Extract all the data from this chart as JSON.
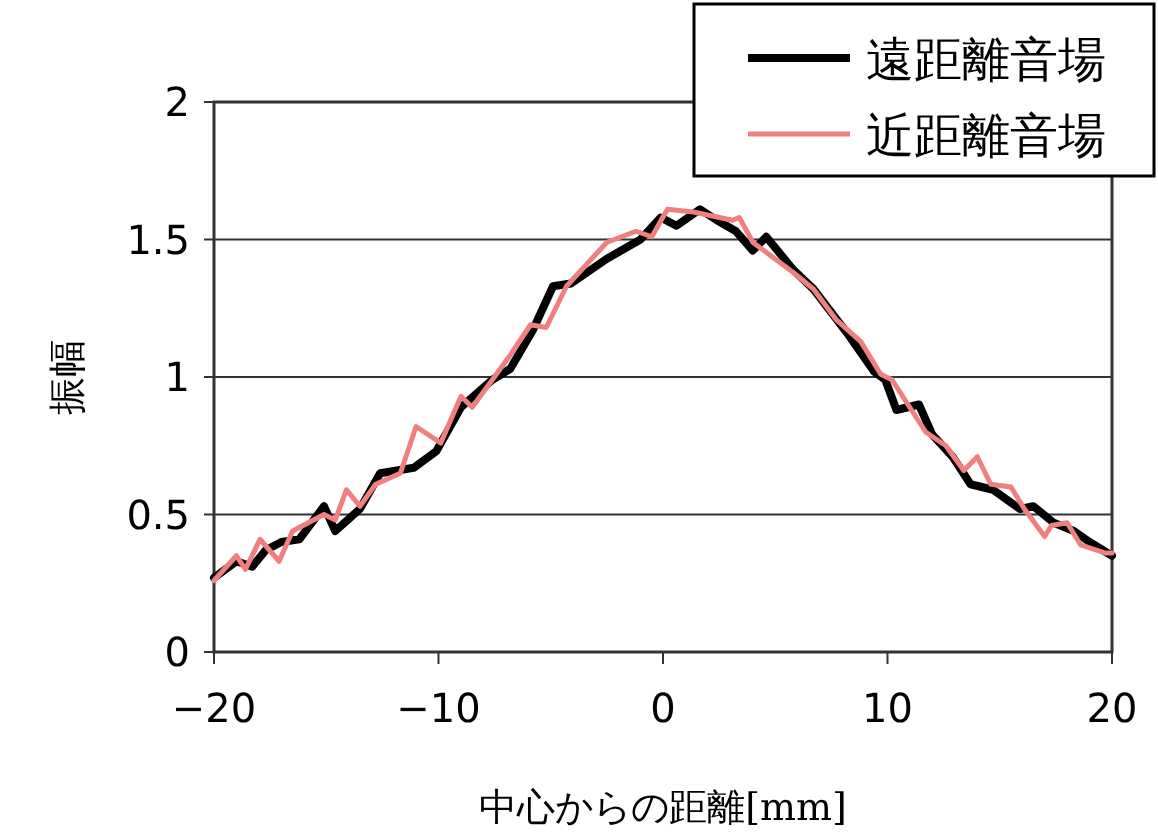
{
  "chart_data": {
    "type": "line",
    "xlabel": "中心からの距離[mm]",
    "ylabel": "振幅",
    "xlim": [
      -20,
      20
    ],
    "xticks": [
      {
        "value": -20,
        "label": "−20"
      },
      {
        "value": -10,
        "label": "−10"
      },
      0,
      10,
      20
    ],
    "ylim": [
      0,
      2
    ],
    "yticks": [
      0,
      0.5,
      1,
      1.5,
      2
    ],
    "grid": "y",
    "legend": "top right",
    "line_style": "solid",
    "marker": "none",
    "series": [
      {
        "name": "遠距離音場",
        "color": "#000000",
        "x": [
          -20,
          -19,
          -18.3,
          -17.7,
          -17,
          -16.2,
          -15.1,
          -14.6,
          -13.5,
          -12.6,
          -11.1,
          -10.1,
          -9,
          -7.6,
          -6.8,
          -5.8,
          -4.9,
          -4.1,
          -2.5,
          -1,
          -0.1,
          0.6,
          1.65,
          2.4,
          3.25,
          4,
          4.6,
          5.8,
          6.7,
          8.2,
          9.4,
          9.9,
          10.4,
          11.4,
          12,
          12.9,
          13.7,
          14.7,
          15.9,
          16.5,
          17.4,
          18.3,
          19,
          20
        ],
        "values": [
          0.27,
          0.33,
          0.31,
          0.37,
          0.4,
          0.41,
          0.53,
          0.44,
          0.52,
          0.65,
          0.67,
          0.73,
          0.89,
          0.99,
          1.03,
          1.17,
          1.33,
          1.34,
          1.43,
          1.5,
          1.58,
          1.55,
          1.61,
          1.57,
          1.53,
          1.46,
          1.51,
          1.39,
          1.32,
          1.16,
          1.02,
          0.99,
          0.88,
          0.9,
          0.79,
          0.71,
          0.61,
          0.59,
          0.52,
          0.53,
          0.47,
          0.44,
          0.4,
          0.35
        ]
      },
      {
        "name": "近距離音場",
        "color": "#f08080",
        "x": [
          -20,
          -19,
          -18.6,
          -17.95,
          -17.1,
          -16.5,
          -15.1,
          -14.6,
          -14.1,
          -13.5,
          -12.8,
          -11.7,
          -11,
          -9.9,
          -9,
          -8.5,
          -7.6,
          -6.8,
          -5.9,
          -5.2,
          -4.3,
          -2.5,
          -1.2,
          -0.5,
          0.2,
          1.35,
          3.1,
          3.4,
          4,
          5.8,
          6.7,
          7.7,
          8.8,
          9.7,
          10.2,
          11.7,
          12.6,
          13.4,
          14,
          14.6,
          15.5,
          16.1,
          17,
          17.3,
          18,
          18.6,
          19.7,
          20
        ],
        "values": [
          0.26,
          0.35,
          0.3,
          0.41,
          0.33,
          0.44,
          0.5,
          0.48,
          0.59,
          0.53,
          0.61,
          0.65,
          0.82,
          0.76,
          0.93,
          0.89,
          0.99,
          1.08,
          1.19,
          1.18,
          1.33,
          1.49,
          1.53,
          1.51,
          1.61,
          1.6,
          1.57,
          1.58,
          1.49,
          1.38,
          1.32,
          1.21,
          1.13,
          1.01,
          0.99,
          0.8,
          0.75,
          0.66,
          0.71,
          0.61,
          0.6,
          0.52,
          0.42,
          0.46,
          0.47,
          0.39,
          0.36,
          0.36
        ]
      }
    ]
  }
}
